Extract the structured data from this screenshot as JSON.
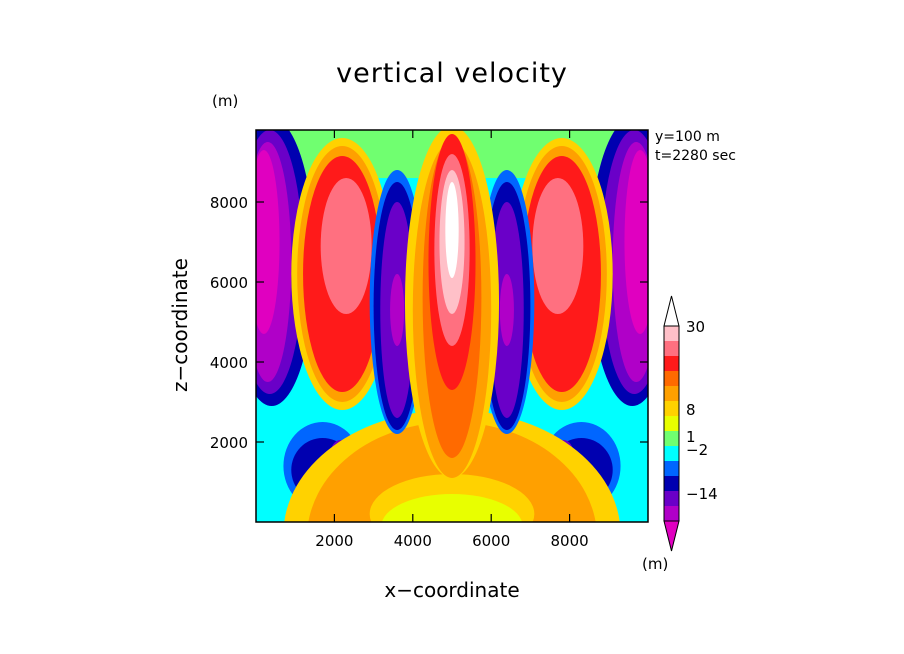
{
  "chart_data": {
    "type": "heatmap",
    "title": "vertical velocity",
    "xlabel": "x−coordinate",
    "ylabel": "z−coordinate",
    "x_unit": "(m)",
    "y_unit": "(m)",
    "colorbar_unit": "(m)",
    "info": [
      "y=100 m",
      "t=2280 sec"
    ],
    "xlim": [
      0,
      10000
    ],
    "ylim": [
      0,
      9800
    ],
    "x_ticks": [
      2000,
      4000,
      6000,
      8000
    ],
    "y_ticks": [
      2000,
      4000,
      6000,
      8000
    ],
    "x_tick_labels": [
      "2000",
      "4000",
      "6000",
      "8000"
    ],
    "y_tick_labels": [
      "2000",
      "4000",
      "6000",
      "8000"
    ],
    "colorbar": {
      "labels": [
        "30",
        "8",
        "1",
        "−2",
        "−14"
      ],
      "colors_top_to_bottom": [
        "#ffffff",
        "#ffc0c8",
        "#ff7080",
        "#ff1a1a",
        "#ff6a00",
        "#ffa000",
        "#ffd200",
        "#e8ff00",
        "#70ff70",
        "#00ffff",
        "#0066ff",
        "#0000b0",
        "#6a00c8",
        "#b000c8",
        "#e000c0"
      ],
      "extends": "both"
    },
    "features": [
      {
        "name": "central updraft",
        "x": 5000,
        "z": 7500,
        "level": 30
      },
      {
        "name": "left updraft",
        "x": 2200,
        "z": 6500,
        "level": 8
      },
      {
        "name": "right updraft",
        "x": 7800,
        "z": 6500,
        "level": 8
      },
      {
        "name": "left downdraft",
        "x": 3600,
        "z": 5500,
        "level": -14
      },
      {
        "name": "right downdraft",
        "x": 6400,
        "z": 5500,
        "level": -14
      },
      {
        "name": "left edge downdraft",
        "x": 300,
        "z": 6500,
        "level": -14
      },
      {
        "name": "right edge downdraft",
        "x": 9700,
        "z": 6500,
        "level": -14
      }
    ]
  }
}
